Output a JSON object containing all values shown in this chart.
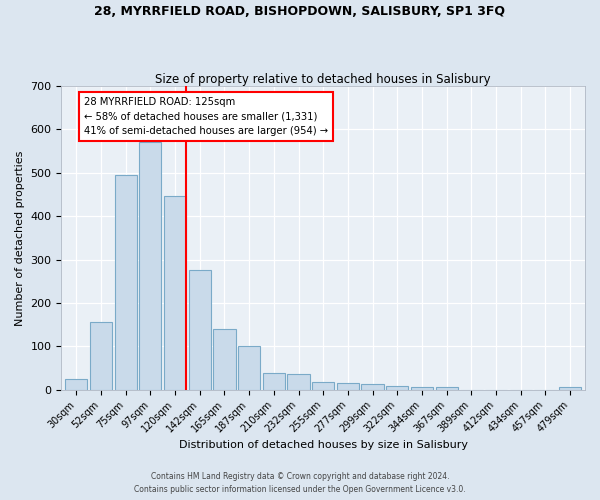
{
  "title": "28, MYRRFIELD ROAD, BISHOPDOWN, SALISBURY, SP1 3FQ",
  "subtitle": "Size of property relative to detached houses in Salisbury",
  "xlabel": "Distribution of detached houses by size in Salisbury",
  "ylabel": "Number of detached properties",
  "bar_labels": [
    "30sqm",
    "52sqm",
    "75sqm",
    "97sqm",
    "120sqm",
    "142sqm",
    "165sqm",
    "187sqm",
    "210sqm",
    "232sqm",
    "255sqm",
    "277sqm",
    "299sqm",
    "322sqm",
    "344sqm",
    "367sqm",
    "389sqm",
    "412sqm",
    "434sqm",
    "457sqm",
    "479sqm"
  ],
  "bar_values": [
    25,
    155,
    495,
    570,
    447,
    277,
    140,
    100,
    38,
    37,
    17,
    16,
    13,
    8,
    6,
    6,
    0,
    0,
    0,
    0,
    6
  ],
  "bar_color": "#c9daea",
  "bar_edge_color": "#7aaac8",
  "vline_color": "red",
  "annotation_title": "28 MYRRFIELD ROAD: 125sqm",
  "annotation_line1": "← 58% of detached houses are smaller (1,331)",
  "annotation_line2": "41% of semi-detached houses are larger (954) →",
  "annotation_box_color": "#ffffff",
  "annotation_box_edge": "red",
  "ylim": [
    0,
    700
  ],
  "yticks": [
    0,
    100,
    200,
    300,
    400,
    500,
    600,
    700
  ],
  "footer_line1": "Contains HM Land Registry data © Crown copyright and database right 2024.",
  "footer_line2": "Contains public sector information licensed under the Open Government Licence v3.0.",
  "bg_color": "#dce6f0",
  "plot_bg_color": "#eaf0f6"
}
